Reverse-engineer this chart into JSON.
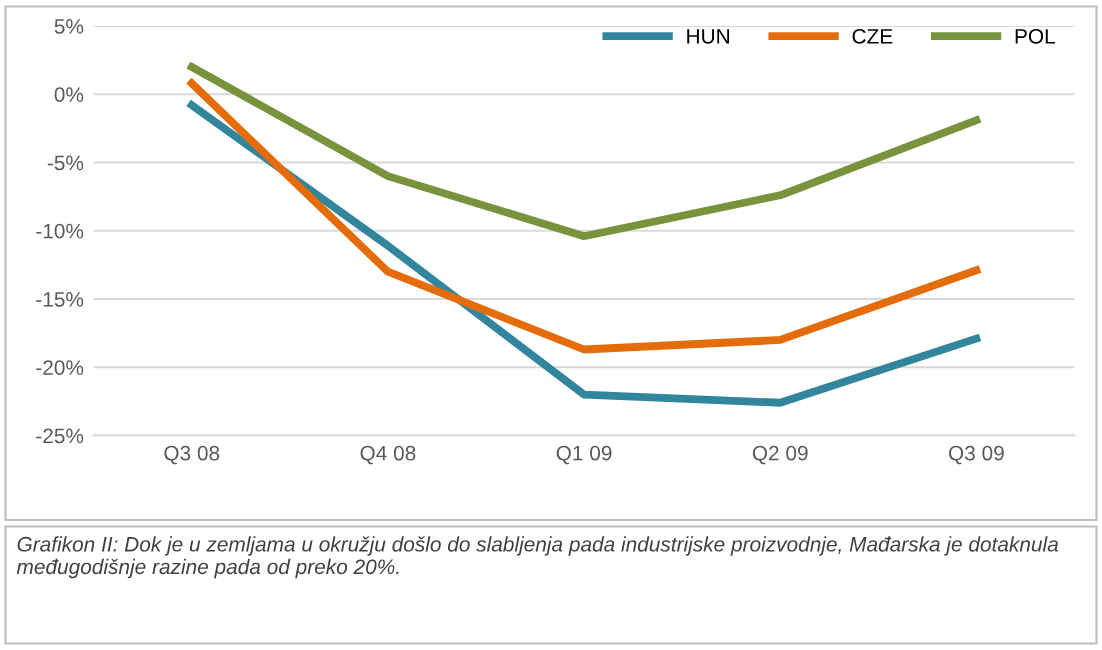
{
  "chart_data": {
    "type": "line",
    "categories": [
      "Q3 08",
      "Q4 08",
      "Q1 09",
      "Q2 09",
      "Q3 09"
    ],
    "series": [
      {
        "name": "HUN",
        "color": "#31859c",
        "values": [
          -0.8,
          -11.1,
          -22.0,
          -22.6,
          -17.9
        ]
      },
      {
        "name": "CZE",
        "color": "#e46c0a",
        "values": [
          0.8,
          -13.0,
          -18.7,
          -18.0,
          -12.9
        ]
      },
      {
        "name": "POL",
        "color": "#77933c",
        "values": [
          2.0,
          -6.0,
          -10.4,
          -7.4,
          -1.9
        ]
      }
    ],
    "ylim": [
      -25,
      5
    ],
    "yticks": [
      {
        "value": -25,
        "label": "-25%"
      },
      {
        "value": -20,
        "label": "-20%"
      },
      {
        "value": -15,
        "label": "-15%"
      },
      {
        "value": -10,
        "label": "-10%"
      },
      {
        "value": -5,
        "label": "-5%"
      },
      {
        "value": 0,
        "label": "0%"
      },
      {
        "value": 5,
        "label": "5%"
      }
    ],
    "grid": "y",
    "legend": "top right",
    "marker": "none",
    "line_style": "solid",
    "annotations": [
      "Grafikon II: Dok je u zemljama u okružju došlo do slabljenja pada industrijske proizvodnje, Mađarska je dotaknula međugodišnje razine pada od preko 20%."
    ]
  }
}
